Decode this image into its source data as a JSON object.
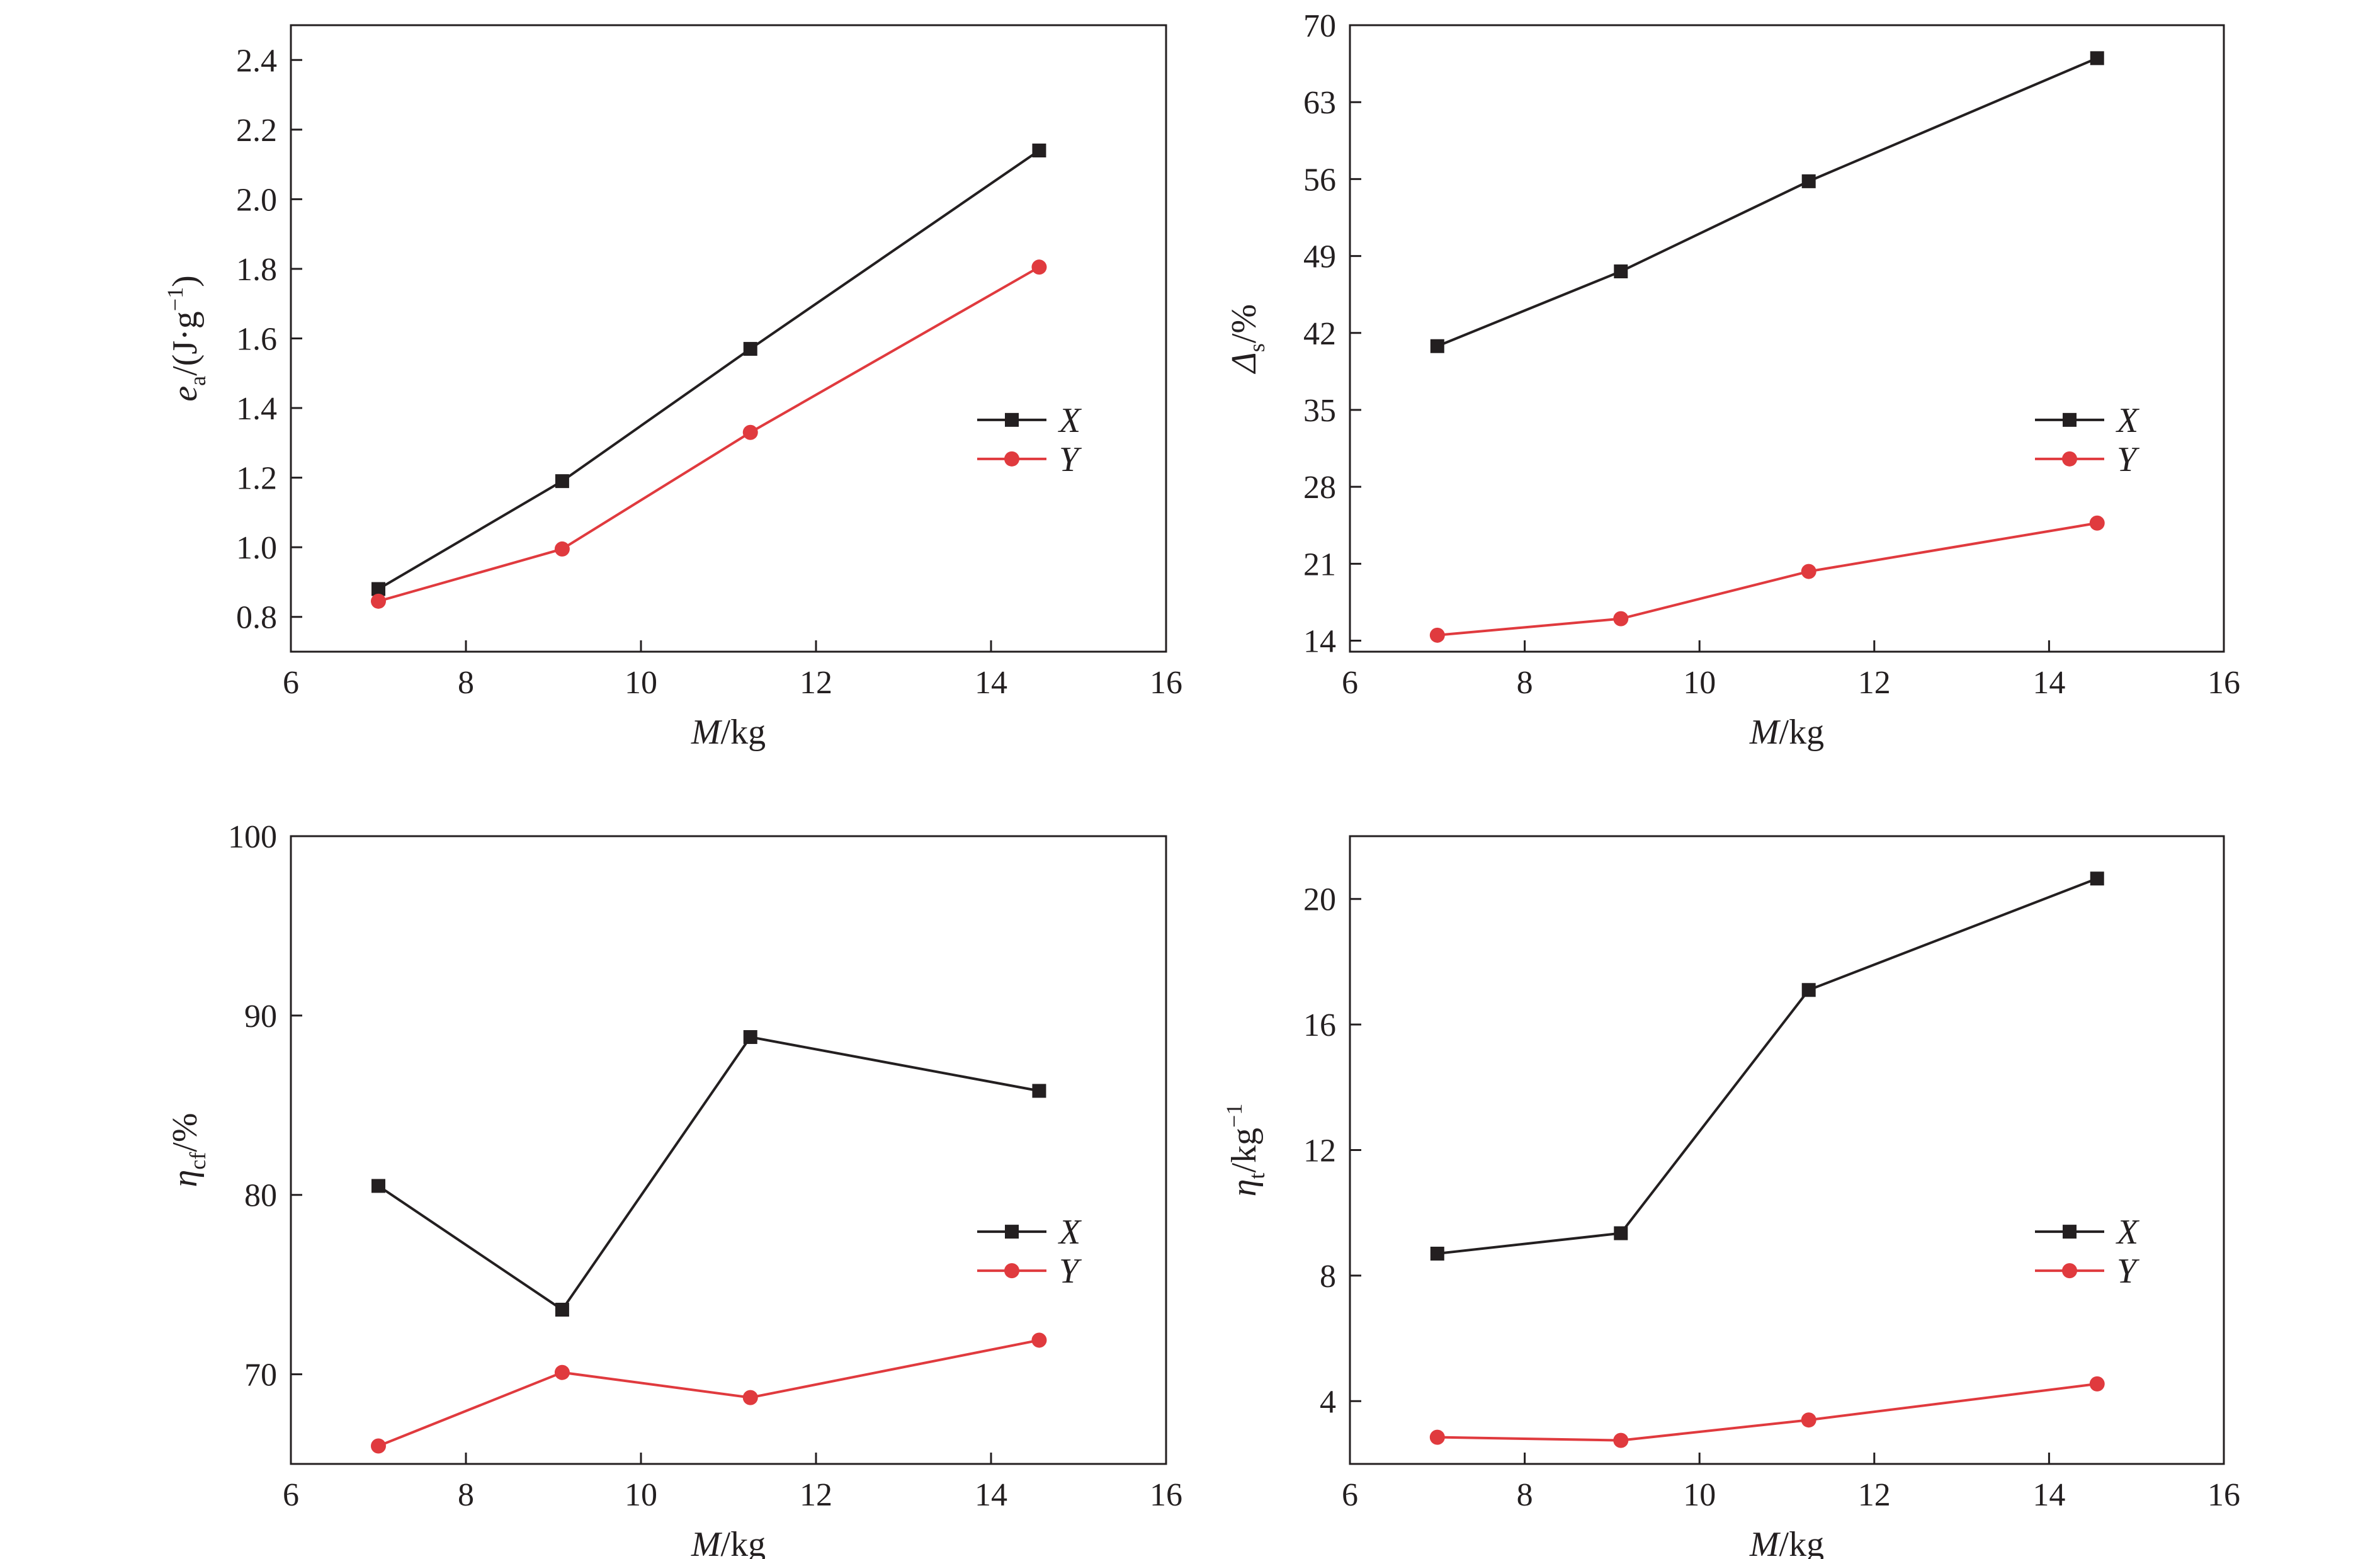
{
  "colors": {
    "X": "#231f20",
    "Y": "#e03a3e",
    "axis": "#231f20"
  },
  "chart_data": [
    {
      "id": "panel-ea",
      "type": "line",
      "x": [
        7.0,
        9.1,
        11.25,
        14.55
      ],
      "series": [
        {
          "name": "X",
          "values": [
            0.88,
            1.19,
            1.57,
            2.14
          ]
        },
        {
          "name": "Y",
          "values": [
            0.845,
            0.995,
            1.33,
            1.805
          ]
        }
      ],
      "xlabel_italic": "M",
      "xlabel_rest": "/kg",
      "ylabel_sym": "e",
      "ylabel_sub": "a",
      "ylabel_rest": "/(J·g",
      "ylabel_sup": "−1",
      "ylabel_end": ")",
      "xlim": [
        6,
        16
      ],
      "ylim": [
        0.7,
        2.5
      ],
      "xticks": [
        6,
        8,
        10,
        12,
        14,
        16
      ],
      "xtick_labels": [
        "6",
        "8",
        "10",
        "12",
        "14",
        "16"
      ],
      "yticks": [
        0.8,
        1.0,
        1.2,
        1.4,
        1.6,
        1.8,
        2.0,
        2.2,
        2.4
      ],
      "ytick_labels": [
        "0.8",
        "1.0",
        "1.2",
        "1.4",
        "1.6",
        "1.8",
        "2.0",
        "2.2",
        "2.4"
      ],
      "legend": "right-middle",
      "grid": false
    },
    {
      "id": "panel-delta",
      "type": "line",
      "x": [
        7.0,
        9.1,
        11.25,
        14.55
      ],
      "series": [
        {
          "name": "X",
          "values": [
            40.8,
            47.6,
            55.8,
            67.0
          ]
        },
        {
          "name": "Y",
          "values": [
            14.5,
            16.0,
            20.3,
            24.7
          ]
        }
      ],
      "xlabel_italic": "M",
      "xlabel_rest": "/kg",
      "ylabel_sym": "Δ",
      "ylabel_sub": "s",
      "ylabel_rest": "/%",
      "ylabel_sup": "",
      "ylabel_end": "",
      "xlim": [
        6,
        16
      ],
      "ylim": [
        13,
        70
      ],
      "xticks": [
        6,
        8,
        10,
        12,
        14,
        16
      ],
      "xtick_labels": [
        "6",
        "8",
        "10",
        "12",
        "14",
        "16"
      ],
      "yticks": [
        14,
        21,
        28,
        35,
        42,
        49,
        56,
        63,
        70
      ],
      "ytick_labels": [
        "14",
        "21",
        "28",
        "35",
        "42",
        "49",
        "56",
        "63",
        "70"
      ],
      "legend": "right-middle",
      "grid": false
    },
    {
      "id": "panel-eta-cf",
      "type": "line",
      "x": [
        7.0,
        9.1,
        11.25,
        14.55
      ],
      "series": [
        {
          "name": "X",
          "values": [
            80.5,
            73.6,
            88.8,
            85.8
          ]
        },
        {
          "name": "Y",
          "values": [
            66.0,
            70.1,
            68.7,
            71.9
          ]
        }
      ],
      "xlabel_italic": "M",
      "xlabel_rest": "/kg",
      "ylabel_sym": "η",
      "ylabel_sub": "cf",
      "ylabel_rest": "/%",
      "ylabel_sup": "",
      "ylabel_end": "",
      "xlim": [
        6,
        16
      ],
      "ylim": [
        65,
        100
      ],
      "xticks": [
        6,
        8,
        10,
        12,
        14,
        16
      ],
      "xtick_labels": [
        "6",
        "8",
        "10",
        "12",
        "14",
        "16"
      ],
      "yticks": [
        70,
        80,
        90,
        100
      ],
      "ytick_labels": [
        "70",
        "80",
        "90",
        "100"
      ],
      "legend": "right-middle",
      "grid": false
    },
    {
      "id": "panel-eta-t",
      "type": "line",
      "x": [
        7.0,
        9.1,
        11.25,
        14.55
      ],
      "series": [
        {
          "name": "X",
          "values": [
            8.7,
            9.35,
            17.1,
            20.65
          ]
        },
        {
          "name": "Y",
          "values": [
            2.85,
            2.75,
            3.4,
            4.55
          ]
        }
      ],
      "xlabel_italic": "M",
      "xlabel_rest": "/kg",
      "ylabel_sym": "η",
      "ylabel_sub": "t",
      "ylabel_rest": "/kg",
      "ylabel_sup": "−1",
      "ylabel_end": "",
      "xlim": [
        6,
        16
      ],
      "ylim": [
        2,
        22
      ],
      "xticks": [
        6,
        8,
        10,
        12,
        14,
        16
      ],
      "xtick_labels": [
        "6",
        "8",
        "10",
        "12",
        "14",
        "16"
      ],
      "yticks": [
        4,
        8,
        12,
        16,
        20
      ],
      "ytick_labels": [
        "4",
        "8",
        "12",
        "16",
        "20"
      ],
      "legend": "right-middle",
      "grid": false
    }
  ]
}
